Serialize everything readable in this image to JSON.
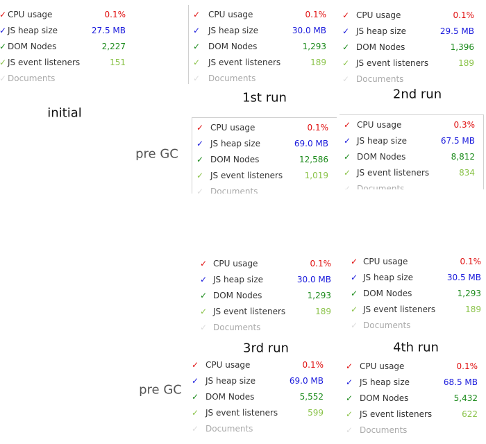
{
  "labels": [
    "initial",
    "1st run",
    "2nd run",
    "pre GC",
    "3rd run",
    "4th run",
    "pre GC"
  ],
  "panels": [
    {
      "rows": [
        {
          "name": "CPU usage",
          "value": "0.1%"
        },
        {
          "name": "JS heap size",
          "value": "27.5 MB"
        },
        {
          "name": "DOM Nodes",
          "value": "2,227"
        },
        {
          "name": "JS event listeners",
          "value": "151"
        },
        {
          "name": "Documents"
        }
      ]
    },
    {
      "rows": [
        {
          "name": "CPU usage",
          "value": "0.1%"
        },
        {
          "name": "JS heap size",
          "value": "30.0 MB"
        },
        {
          "name": "DOM Nodes",
          "value": "1,293"
        },
        {
          "name": "JS event listeners",
          "value": "189"
        },
        {
          "name": "Documents"
        }
      ]
    },
    {
      "rows": [
        {
          "name": "CPU usage",
          "value": "0.1%"
        },
        {
          "name": "JS heap size",
          "value": "29.5 MB"
        },
        {
          "name": "DOM Nodes",
          "value": "1,396"
        },
        {
          "name": "JS event listeners",
          "value": "189"
        },
        {
          "name": "Documents"
        }
      ]
    },
    {
      "rows": [
        {
          "name": "CPU usage",
          "value": "0.1%"
        },
        {
          "name": "JS heap size",
          "value": "69.0 MB"
        },
        {
          "name": "DOM Nodes",
          "value": "12,586"
        },
        {
          "name": "JS event listeners",
          "value": "1,019"
        },
        {
          "name": "Documents"
        }
      ]
    },
    {
      "rows": [
        {
          "name": "CPU usage",
          "value": "0.3%"
        },
        {
          "name": "JS heap size",
          "value": "67.5 MB"
        },
        {
          "name": "DOM Nodes",
          "value": "8,812"
        },
        {
          "name": "JS event listeners",
          "value": "834"
        },
        {
          "name": "Documents"
        }
      ]
    },
    {
      "rows": [
        {
          "name": "CPU usage",
          "value": "0.1%"
        },
        {
          "name": "JS heap size",
          "value": "30.0 MB"
        },
        {
          "name": "DOM Nodes",
          "value": "1,293"
        },
        {
          "name": "JS event listeners",
          "value": "189"
        },
        {
          "name": "Documents"
        }
      ]
    },
    {
      "rows": [
        {
          "name": "CPU usage",
          "value": "0.1%"
        },
        {
          "name": "JS heap size",
          "value": "30.5 MB"
        },
        {
          "name": "DOM Nodes",
          "value": "1,293"
        },
        {
          "name": "JS event listeners",
          "value": "189"
        },
        {
          "name": "Documents"
        }
      ]
    },
    {
      "rows": [
        {
          "name": "CPU usage",
          "value": "0.1%"
        },
        {
          "name": "JS heap size",
          "value": "69.0 MB"
        },
        {
          "name": "DOM Nodes",
          "value": "5,552"
        },
        {
          "name": "JS event listeners",
          "value": "599"
        },
        {
          "name": "Documents"
        }
      ]
    },
    {
      "rows": [
        {
          "name": "CPU usage",
          "value": "0.1%"
        },
        {
          "name": "JS heap size",
          "value": "68.5 MB"
        },
        {
          "name": "DOM Nodes",
          "value": "5,432"
        },
        {
          "name": "JS event listeners",
          "value": "622"
        },
        {
          "name": "Documents"
        }
      ]
    }
  ]
}
